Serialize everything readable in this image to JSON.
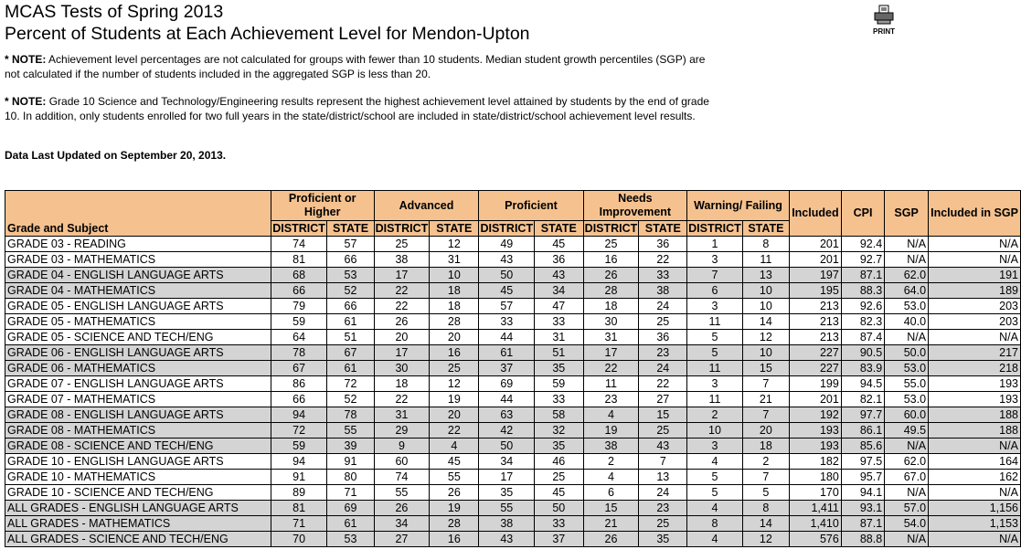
{
  "header": {
    "title": "MCAS Tests of Spring 2013",
    "subtitle": "Percent of Students at Each Achievement Level for Mendon-Upton",
    "print": "PRINT"
  },
  "notes": [
    {
      "label": "* NOTE:",
      "text": "Achievement level percentages are not calculated for groups with fewer than 10 students. Median student growth percentiles (SGP) are not calculated if the number of students included in the aggregated SGP is less than 20."
    },
    {
      "label": "* NOTE:",
      "text": "Grade 10 Science and Technology/Engineering results represent the highest achievement level attained by students by the end of grade 10. In addition, only students enrolled for two full years in the state/district/school are included in state/district/school achievement level results."
    }
  ],
  "updated": "Data Last Updated on September 20, 2013.",
  "table": {
    "groups": [
      "Proficient or Higher",
      "Advanced",
      "Proficient",
      "Needs Improvement",
      "Warning/ Failing"
    ],
    "first_header": "Grade and Subject",
    "sub_headers": [
      "DISTRICT",
      "STATE"
    ],
    "other_headers": [
      "Included",
      "CPI",
      "SGP",
      "Included in SGP"
    ],
    "rows": [
      [
        "GRADE 03 - READING",
        "74",
        "57",
        "25",
        "12",
        "49",
        "45",
        "25",
        "36",
        "1",
        "8",
        "201",
        "92.4",
        "N/A",
        "N/A"
      ],
      [
        "GRADE 03 - MATHEMATICS",
        "81",
        "66",
        "38",
        "31",
        "43",
        "36",
        "16",
        "22",
        "3",
        "11",
        "201",
        "92.7",
        "N/A",
        "N/A"
      ],
      [
        "GRADE 04 - ENGLISH LANGUAGE ARTS",
        "68",
        "53",
        "17",
        "10",
        "50",
        "43",
        "26",
        "33",
        "7",
        "13",
        "197",
        "87.1",
        "62.0",
        "191"
      ],
      [
        "GRADE 04 - MATHEMATICS",
        "66",
        "52",
        "22",
        "18",
        "45",
        "34",
        "28",
        "38",
        "6",
        "10",
        "195",
        "88.3",
        "64.0",
        "189"
      ],
      [
        "GRADE 05 - ENGLISH LANGUAGE ARTS",
        "79",
        "66",
        "22",
        "18",
        "57",
        "47",
        "18",
        "24",
        "3",
        "10",
        "213",
        "92.6",
        "53.0",
        "203"
      ],
      [
        "GRADE 05 - MATHEMATICS",
        "59",
        "61",
        "26",
        "28",
        "33",
        "33",
        "30",
        "25",
        "11",
        "14",
        "213",
        "82.3",
        "40.0",
        "203"
      ],
      [
        "GRADE 05 - SCIENCE AND TECH/ENG",
        "64",
        "51",
        "20",
        "20",
        "44",
        "31",
        "31",
        "36",
        "5",
        "12",
        "213",
        "87.4",
        "N/A",
        "N/A"
      ],
      [
        "GRADE 06 - ENGLISH LANGUAGE ARTS",
        "78",
        "67",
        "17",
        "16",
        "61",
        "51",
        "17",
        "23",
        "5",
        "10",
        "227",
        "90.5",
        "50.0",
        "217"
      ],
      [
        "GRADE 06 - MATHEMATICS",
        "67",
        "61",
        "30",
        "25",
        "37",
        "35",
        "22",
        "24",
        "11",
        "15",
        "227",
        "83.9",
        "53.0",
        "218"
      ],
      [
        "GRADE 07 - ENGLISH LANGUAGE ARTS",
        "86",
        "72",
        "18",
        "12",
        "69",
        "59",
        "11",
        "22",
        "3",
        "7",
        "199",
        "94.5",
        "55.0",
        "193"
      ],
      [
        "GRADE 07 - MATHEMATICS",
        "66",
        "52",
        "22",
        "19",
        "44",
        "33",
        "23",
        "27",
        "11",
        "21",
        "201",
        "82.1",
        "53.0",
        "193"
      ],
      [
        "GRADE 08 - ENGLISH LANGUAGE ARTS",
        "94",
        "78",
        "31",
        "20",
        "63",
        "58",
        "4",
        "15",
        "2",
        "7",
        "192",
        "97.7",
        "60.0",
        "188"
      ],
      [
        "GRADE 08 - MATHEMATICS",
        "72",
        "55",
        "29",
        "22",
        "42",
        "32",
        "19",
        "25",
        "10",
        "20",
        "193",
        "86.1",
        "49.5",
        "188"
      ],
      [
        "GRADE 08 - SCIENCE AND TECH/ENG",
        "59",
        "39",
        "9",
        "4",
        "50",
        "35",
        "38",
        "43",
        "3",
        "18",
        "193",
        "85.6",
        "N/A",
        "N/A"
      ],
      [
        "GRADE 10 - ENGLISH LANGUAGE ARTS",
        "94",
        "91",
        "60",
        "45",
        "34",
        "46",
        "2",
        "7",
        "4",
        "2",
        "182",
        "97.5",
        "62.0",
        "164"
      ],
      [
        "GRADE 10 - MATHEMATICS",
        "91",
        "80",
        "74",
        "55",
        "17",
        "25",
        "4",
        "13",
        "5",
        "7",
        "180",
        "95.7",
        "67.0",
        "162"
      ],
      [
        "GRADE 10 - SCIENCE AND TECH/ENG",
        "89",
        "71",
        "55",
        "26",
        "35",
        "45",
        "6",
        "24",
        "5",
        "5",
        "170",
        "94.1",
        "N/A",
        "N/A"
      ],
      [
        "ALL GRADES - ENGLISH LANGUAGE ARTS",
        "81",
        "69",
        "26",
        "19",
        "55",
        "50",
        "15",
        "23",
        "4",
        "8",
        "1,411",
        "93.1",
        "57.0",
        "1,156"
      ],
      [
        "ALL GRADES - MATHEMATICS",
        "71",
        "61",
        "34",
        "28",
        "38",
        "33",
        "21",
        "25",
        "8",
        "14",
        "1,410",
        "87.1",
        "54.0",
        "1,153"
      ],
      [
        "ALL GRADES - SCIENCE AND TECH/ENG",
        "70",
        "53",
        "27",
        "16",
        "43",
        "37",
        "26",
        "35",
        "4",
        "12",
        "576",
        "88.8",
        "N/A",
        "N/A"
      ]
    ]
  }
}
